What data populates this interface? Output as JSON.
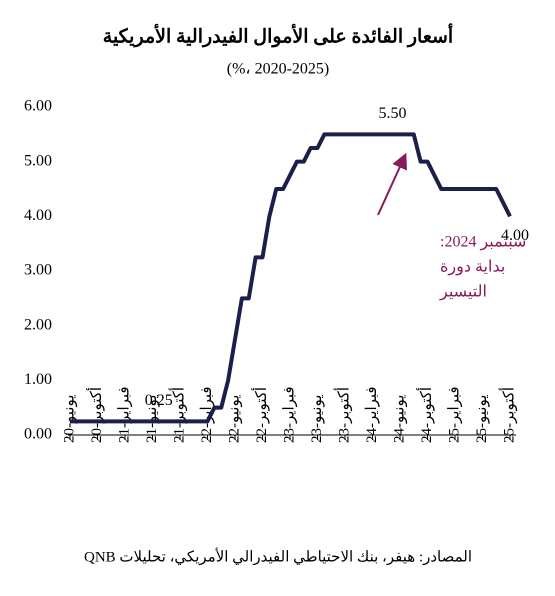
{
  "chart_data": {
    "type": "line",
    "title": "أسعار الفائدة على الأموال الفيدرالية الأمريكية",
    "subtitle": "(%، 2020-2025)",
    "source": "المصادر: هيفر، بنك الاحتياطي الفيدرالي الأمريكي، تحليلات QNB",
    "annotation": [
      "سبتمبر 2024:",
      "بداية دورة",
      "التيسير"
    ],
    "annotation_color": "#8b1a5a",
    "categories": [
      "يونيو-20",
      null,
      null,
      null,
      "أكتوبر-20",
      null,
      null,
      null,
      "فبراير-21",
      null,
      null,
      null,
      "يونيو-21",
      null,
      null,
      null,
      "أكتوبر-21",
      null,
      null,
      null,
      "فبراير-22",
      null,
      null,
      null,
      "يونيو-22",
      null,
      null,
      null,
      "أكتوبر-22",
      null,
      null,
      null,
      "فبراير-23",
      null,
      null,
      null,
      "يونيو-23",
      null,
      null,
      null,
      "أكتوبر-23",
      null,
      null,
      null,
      "فبراير-24",
      null,
      null,
      null,
      "يونيو-24",
      null,
      null,
      null,
      "أكتوبر-24",
      null,
      null,
      null,
      "فبراير-25",
      null,
      null,
      null,
      "يونيو-25",
      null,
      null,
      null,
      "أكتوبر-25"
    ],
    "values": [
      0.25,
      0.25,
      0.25,
      0.25,
      0.25,
      0.25,
      0.25,
      0.25,
      0.25,
      0.25,
      0.25,
      0.25,
      0.25,
      0.25,
      0.25,
      0.25,
      0.25,
      0.25,
      0.25,
      0.25,
      0.25,
      0.5,
      0.5,
      1.0,
      1.75,
      2.5,
      2.5,
      3.25,
      3.25,
      4.0,
      4.5,
      4.5,
      4.75,
      5.0,
      5.0,
      5.25,
      5.25,
      5.5,
      5.5,
      5.5,
      5.5,
      5.5,
      5.5,
      5.5,
      5.5,
      5.5,
      5.5,
      5.5,
      5.5,
      5.5,
      5.5,
      5.0,
      5.0,
      4.75,
      4.5,
      4.5,
      4.5,
      4.5,
      4.5,
      4.5,
      4.5,
      4.5,
      4.5,
      4.25,
      4.0
    ],
    "value_labels": [
      null,
      null,
      null,
      null,
      null,
      null,
      null,
      null,
      null,
      null,
      "0.25",
      null,
      null,
      null,
      null,
      null,
      null,
      null,
      null,
      null,
      null,
      null,
      null,
      null,
      null,
      null,
      null,
      null,
      null,
      null,
      null,
      null,
      null,
      null,
      null,
      null,
      null,
      null,
      null,
      null,
      null,
      null,
      null,
      null,
      "5.50",
      null,
      null,
      null,
      null,
      null,
      null,
      null,
      null,
      null,
      null,
      null,
      null,
      null,
      null,
      null,
      null,
      null,
      null,
      null,
      "4.00"
    ],
    "color": "#1b1f4b",
    "ylim": [
      0,
      6
    ],
    "yticks": [
      {
        "value": 0,
        "label": "0.00"
      },
      {
        "value": 1,
        "label": "1.00"
      },
      {
        "value": 2,
        "label": "2.00"
      },
      {
        "value": 3,
        "label": "3.00"
      },
      {
        "value": 4,
        "label": "4.00"
      },
      {
        "value": 5,
        "label": "5.00"
      },
      {
        "value": 6,
        "label": "6.00"
      }
    ],
    "grid": false
  }
}
